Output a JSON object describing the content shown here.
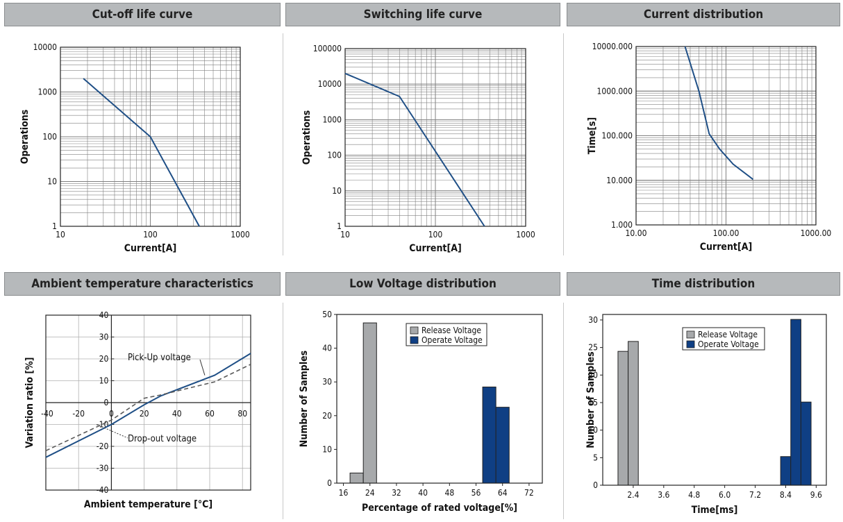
{
  "panels": {
    "cutoff": {
      "title": "Cut-off life curve"
    },
    "switching": {
      "title": "Switching life curve"
    },
    "current": {
      "title": "Current distribution"
    },
    "ambient": {
      "title": "Ambient temperature characteristics"
    },
    "lowvolt": {
      "title": "Low Voltage distribution"
    },
    "time": {
      "title": "Time distribution"
    }
  },
  "colors": {
    "curve": "#1f4f86",
    "release": "#a7a9ab",
    "operate": "#0f3f84",
    "grid": "#808080",
    "dashed": "#5a5a5a"
  },
  "chart_data": [
    {
      "id": "cutoff",
      "type": "line",
      "title": "Cut-off life curve",
      "xlabel": "Current[A]",
      "ylabel": "Operations",
      "xscale": "log",
      "yscale": "log",
      "xlim": [
        10,
        1000
      ],
      "ylim": [
        1,
        10000
      ],
      "xticks": [
        "10",
        "100",
        "1000"
      ],
      "yticks": [
        "1",
        "10",
        "100",
        "1000",
        "10000"
      ],
      "series": [
        {
          "x": [
            18,
            100,
            350
          ],
          "y": [
            2000,
            100,
            1
          ]
        }
      ]
    },
    {
      "id": "switching",
      "type": "line",
      "title": "Switching life curve",
      "xlabel": "Current[A]",
      "ylabel": "Operations",
      "xscale": "log",
      "yscale": "log",
      "xlim": [
        10,
        1000
      ],
      "ylim": [
        1,
        100000
      ],
      "xticks": [
        "10",
        "100",
        "1000"
      ],
      "yticks": [
        "1",
        "10",
        "100",
        "1000",
        "10000",
        "100000"
      ],
      "series": [
        {
          "x": [
            10,
            40,
            350
          ],
          "y": [
            20000,
            4500,
            1
          ]
        }
      ]
    },
    {
      "id": "current",
      "type": "line",
      "title": "Current distribution",
      "xlabel": "Current[A]",
      "ylabel": "Time[s]",
      "xscale": "log",
      "yscale": "log",
      "xlim": [
        10,
        1000
      ],
      "ylim": [
        1,
        10000
      ],
      "xticks": [
        "10.00",
        "100.00",
        "1000.00"
      ],
      "yticks": [
        "1.000",
        "10.000",
        "100.000",
        "1000.000",
        "10000.000"
      ],
      "series": [
        {
          "x": [
            35,
            50,
            65,
            85,
            120,
            200
          ],
          "y": [
            10000,
            1000,
            110,
            50,
            23,
            10.5
          ]
        }
      ]
    },
    {
      "id": "ambient",
      "type": "line",
      "title": "Ambient temperature characteristics",
      "xlabel": "Ambient temperature [°C]",
      "ylabel": "Variation ratio [%]",
      "xlim": [
        -40,
        85
      ],
      "ylim": [
        -40,
        40
      ],
      "xticks": [
        -40,
        -20,
        0,
        20,
        40,
        60,
        80
      ],
      "yticks": [
        -40,
        -30,
        -20,
        -10,
        0,
        10,
        20,
        30,
        40
      ],
      "series": [
        {
          "name": "Pick-Up voltage",
          "style": "solid",
          "x": [
            -40,
            0,
            20,
            30,
            63,
            85
          ],
          "y": [
            -25,
            -10,
            -1,
            3,
            12.5,
            22.5
          ]
        },
        {
          "name": "Drop-out voltage",
          "style": "dashed",
          "x": [
            -40,
            0,
            20,
            30,
            63,
            85
          ],
          "y": [
            -22,
            -8,
            2,
            3.5,
            9.5,
            17.5
          ]
        }
      ],
      "annotations": [
        {
          "text": "Pick-Up voltage",
          "x": 57,
          "y": 12.5
        },
        {
          "text": "Drop-out voltage",
          "x": -5,
          "y": -14
        }
      ]
    },
    {
      "id": "lowvolt",
      "type": "bar",
      "title": "Low Voltage distribution",
      "xlabel": "Percentage of rated voltage[%]",
      "ylabel": "Number of Samples",
      "xlim": [
        14,
        76
      ],
      "ylim": [
        0,
        50
      ],
      "xticks": [
        16,
        24,
        32,
        40,
        48,
        56,
        64,
        72
      ],
      "yticks": [
        0,
        10,
        20,
        30,
        40,
        50
      ],
      "bin_width": 4,
      "legend": [
        "Release Voltage",
        "Operate Voltage"
      ],
      "series": [
        {
          "name": "Release Voltage",
          "bins": [
            {
              "start": 18,
              "value": 3
            },
            {
              "start": 22,
              "value": 47.5
            }
          ]
        },
        {
          "name": "Operate Voltage",
          "bins": [
            {
              "start": 58,
              "value": 28.5
            },
            {
              "start": 62,
              "value": 22.5
            }
          ]
        }
      ]
    },
    {
      "id": "time",
      "type": "bar",
      "title": "Time distribution",
      "xlabel": "Time[ms]",
      "ylabel": "Number of Samples",
      "xlim": [
        1.2,
        10
      ],
      "ylim": [
        0,
        31
      ],
      "xticks": [
        "2.4",
        "3.6",
        "4.8",
        "6.0",
        "7.2",
        "8.4",
        "9.6"
      ],
      "yticks": [
        0,
        5,
        10,
        15,
        20,
        25,
        30
      ],
      "bin_width": 0.4,
      "legend": [
        "Release Voltage",
        "Operate Voltage"
      ],
      "series": [
        {
          "name": "Release Voltage",
          "bins": [
            {
              "start": 1.8,
              "value": 24.3
            },
            {
              "start": 2.2,
              "value": 26.1
            }
          ]
        },
        {
          "name": "Operate Voltage",
          "bins": [
            {
              "start": 8.2,
              "value": 5.2
            },
            {
              "start": 8.6,
              "value": 30.1
            },
            {
              "start": 9.0,
              "value": 15.1
            }
          ]
        }
      ]
    }
  ]
}
